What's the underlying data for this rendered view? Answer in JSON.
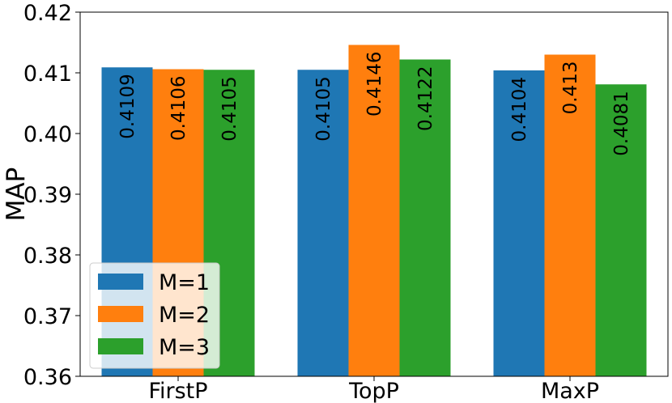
{
  "chart_data": {
    "type": "bar",
    "title": "",
    "xlabel": "",
    "ylabel": "MAP",
    "ylim": [
      0.36,
      0.42
    ],
    "yticks": [
      "0.36",
      "0.37",
      "0.38",
      "0.39",
      "0.40",
      "0.41",
      "0.42"
    ],
    "categories": [
      "FirstP",
      "TopP",
      "MaxP"
    ],
    "series": [
      {
        "name": "M=1",
        "color": "#1f77b4",
        "values": [
          0.4109,
          0.4105,
          0.4104
        ],
        "labels": [
          "0.4109",
          "0.4105",
          "0.4104"
        ]
      },
      {
        "name": "M=2",
        "color": "#ff7f0e",
        "values": [
          0.4106,
          0.4146,
          0.413
        ],
        "labels": [
          "0.4106",
          "0.4146",
          "0.413"
        ]
      },
      {
        "name": "M=3",
        "color": "#2ca02c",
        "values": [
          0.4105,
          0.4122,
          0.4081
        ],
        "labels": [
          "0.4105",
          "0.4122",
          "0.4081"
        ]
      }
    ],
    "legend_position": "bottom-left",
    "grid": false
  }
}
